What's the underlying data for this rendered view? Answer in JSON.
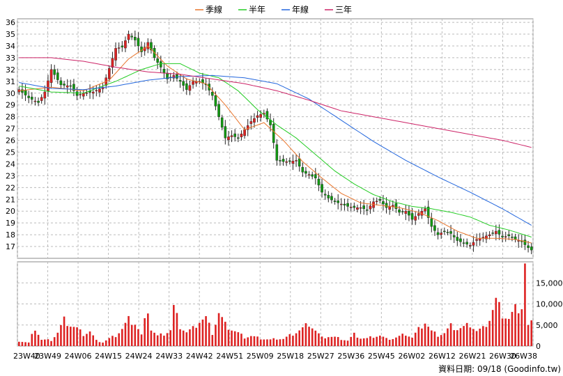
{
  "chart_data": {
    "type": "candlestick",
    "legend": [
      {
        "name": "季線",
        "color": "#e8742a"
      },
      {
        "name": "半年",
        "color": "#22cc22"
      },
      {
        "name": "年線",
        "color": "#2266dd"
      },
      {
        "name": "三年",
        "color": "#cc2266"
      }
    ],
    "legend_position": "top-center",
    "grid": true,
    "price_axis": {
      "range": [
        16,
        36.3
      ],
      "ticks": [
        17,
        18,
        19,
        20,
        21,
        22,
        23,
        24,
        25,
        26,
        27,
        28,
        29,
        30,
        31,
        32,
        33,
        34,
        35,
        36
      ]
    },
    "volume_axis": {
      "range": [
        0,
        20000
      ],
      "ticks": [
        0,
        5000,
        10000,
        15000
      ],
      "tick_labels": [
        "0",
        "5,000",
        "10,000",
        "15,000"
      ]
    },
    "x_categories": [
      "23W40",
      "23W49",
      "24W06",
      "24W15",
      "24W24",
      "24W33",
      "24W42",
      "24W51",
      "25W09",
      "25W18",
      "25W27",
      "25W36",
      "25W45",
      "26W02",
      "26W12",
      "26W21",
      "26W30",
      "26W38"
    ],
    "close_anchors": [
      [
        0,
        30.3
      ],
      [
        3,
        29.6
      ],
      [
        6,
        29.2
      ],
      [
        8,
        30.1
      ],
      [
        10,
        32.0
      ],
      [
        13,
        30.7
      ],
      [
        16,
        30.6
      ],
      [
        18,
        29.8
      ],
      [
        20,
        30.0
      ],
      [
        23,
        30.1
      ],
      [
        26,
        30.5
      ],
      [
        28,
        32.1
      ],
      [
        30,
        33.8
      ],
      [
        32,
        33.9
      ],
      [
        34,
        35.0
      ],
      [
        36,
        34.5
      ],
      [
        38,
        33.5
      ],
      [
        40,
        34.3
      ],
      [
        42,
        33.0
      ],
      [
        44,
        32.2
      ],
      [
        46,
        31.2
      ],
      [
        48,
        31.5
      ],
      [
        50,
        31.0
      ],
      [
        52,
        30.3
      ],
      [
        54,
        31.0
      ],
      [
        56,
        31.0
      ],
      [
        58,
        30.7
      ],
      [
        60,
        29.8
      ],
      [
        62,
        28.0
      ],
      [
        64,
        26.2
      ],
      [
        66,
        26.4
      ],
      [
        68,
        26.2
      ],
      [
        70,
        26.9
      ],
      [
        72,
        27.6
      ],
      [
        74,
        28.1
      ],
      [
        76,
        28.3
      ],
      [
        78,
        27.3
      ],
      [
        80,
        24.3
      ],
      [
        82,
        24.2
      ],
      [
        84,
        24.2
      ],
      [
        86,
        24.3
      ],
      [
        88,
        23.3
      ],
      [
        90,
        23.1
      ],
      [
        92,
        22.8
      ],
      [
        94,
        21.6
      ],
      [
        96,
        21.1
      ],
      [
        98,
        20.8
      ],
      [
        100,
        20.6
      ],
      [
        102,
        20.4
      ],
      [
        104,
        20.3
      ],
      [
        106,
        20.3
      ],
      [
        108,
        20.1
      ],
      [
        110,
        20.8
      ],
      [
        112,
        20.9
      ],
      [
        114,
        20.3
      ],
      [
        116,
        20.5
      ],
      [
        118,
        19.9
      ],
      [
        120,
        20.0
      ],
      [
        122,
        19.3
      ],
      [
        124,
        19.8
      ],
      [
        126,
        20.2
      ],
      [
        128,
        18.7
      ],
      [
        130,
        18.0
      ],
      [
        132,
        18.3
      ],
      [
        134,
        18.1
      ],
      [
        136,
        17.5
      ],
      [
        138,
        17.3
      ],
      [
        140,
        17.1
      ],
      [
        142,
        17.6
      ],
      [
        144,
        17.8
      ],
      [
        146,
        18.0
      ],
      [
        148,
        18.3
      ],
      [
        150,
        17.8
      ],
      [
        152,
        17.9
      ],
      [
        154,
        17.6
      ],
      [
        156,
        17.4
      ],
      [
        158,
        16.9
      ],
      [
        159,
        16.7
      ]
    ],
    "ma_quarter_anchors": [
      [
        0,
        30.2
      ],
      [
        10,
        30.5
      ],
      [
        20,
        30.2
      ],
      [
        28,
        31.1
      ],
      [
        34,
        32.9
      ],
      [
        40,
        34.0
      ],
      [
        46,
        32.3
      ],
      [
        52,
        31.2
      ],
      [
        58,
        30.8
      ],
      [
        64,
        29.0
      ],
      [
        70,
        26.9
      ],
      [
        76,
        27.5
      ],
      [
        82,
        26.0
      ],
      [
        88,
        24.2
      ],
      [
        94,
        22.8
      ],
      [
        100,
        21.5
      ],
      [
        106,
        20.7
      ],
      [
        112,
        20.5
      ],
      [
        118,
        20.3
      ],
      [
        124,
        19.9
      ],
      [
        130,
        19.2
      ],
      [
        136,
        18.3
      ],
      [
        142,
        17.7
      ],
      [
        148,
        17.7
      ],
      [
        154,
        17.6
      ],
      [
        159,
        17.3
      ]
    ],
    "ma_halfyear_anchors": [
      [
        0,
        30.6
      ],
      [
        10,
        30.1
      ],
      [
        20,
        30.0
      ],
      [
        30,
        31.0
      ],
      [
        38,
        32.0
      ],
      [
        44,
        32.5
      ],
      [
        50,
        32.5
      ],
      [
        56,
        31.7
      ],
      [
        62,
        31.3
      ],
      [
        68,
        30.2
      ],
      [
        74,
        28.6
      ],
      [
        80,
        27.3
      ],
      [
        86,
        26.2
      ],
      [
        92,
        24.8
      ],
      [
        98,
        23.4
      ],
      [
        104,
        22.3
      ],
      [
        110,
        21.4
      ],
      [
        116,
        20.8
      ],
      [
        122,
        20.4
      ],
      [
        128,
        20.2
      ],
      [
        134,
        19.9
      ],
      [
        140,
        19.5
      ],
      [
        146,
        18.8
      ],
      [
        152,
        18.4
      ],
      [
        159,
        17.8
      ]
    ],
    "ma_year_anchors": [
      [
        0,
        30.9
      ],
      [
        10,
        30.4
      ],
      [
        20,
        30.3
      ],
      [
        30,
        30.6
      ],
      [
        40,
        31.1
      ],
      [
        50,
        31.4
      ],
      [
        60,
        31.5
      ],
      [
        70,
        31.3
      ],
      [
        80,
        30.8
      ],
      [
        90,
        29.5
      ],
      [
        100,
        27.7
      ],
      [
        110,
        25.9
      ],
      [
        120,
        24.3
      ],
      [
        130,
        22.9
      ],
      [
        140,
        21.6
      ],
      [
        150,
        20.2
      ],
      [
        159,
        18.8
      ]
    ],
    "ma_3year_anchors": [
      [
        0,
        33.0
      ],
      [
        10,
        33.0
      ],
      [
        20,
        32.7
      ],
      [
        30,
        32.2
      ],
      [
        40,
        31.8
      ],
      [
        50,
        31.6
      ],
      [
        60,
        31.2
      ],
      [
        70,
        30.8
      ],
      [
        80,
        30.2
      ],
      [
        90,
        29.4
      ],
      [
        100,
        28.5
      ],
      [
        110,
        28.0
      ],
      [
        120,
        27.5
      ],
      [
        130,
        27.0
      ],
      [
        140,
        26.5
      ],
      [
        150,
        26.0
      ],
      [
        159,
        25.4
      ]
    ],
    "volume_anchors": [
      [
        0,
        1200
      ],
      [
        3,
        800
      ],
      [
        5,
        4300
      ],
      [
        7,
        1500
      ],
      [
        10,
        1400
      ],
      [
        12,
        3200
      ],
      [
        14,
        6200
      ],
      [
        16,
        5000
      ],
      [
        18,
        4200
      ],
      [
        20,
        2800
      ],
      [
        22,
        3500
      ],
      [
        24,
        1300
      ],
      [
        26,
        900
      ],
      [
        28,
        1800
      ],
      [
        30,
        2500
      ],
      [
        32,
        4100
      ],
      [
        34,
        6300
      ],
      [
        36,
        5500
      ],
      [
        38,
        2600
      ],
      [
        40,
        9100
      ],
      [
        41,
        4000
      ],
      [
        43,
        2400
      ],
      [
        45,
        2900
      ],
      [
        47,
        3800
      ],
      [
        48,
        9200
      ],
      [
        50,
        4700
      ],
      [
        52,
        3300
      ],
      [
        54,
        4200
      ],
      [
        56,
        6000
      ],
      [
        58,
        6700
      ],
      [
        60,
        3100
      ],
      [
        62,
        7900
      ],
      [
        64,
        5100
      ],
      [
        66,
        4000
      ],
      [
        68,
        3100
      ],
      [
        70,
        2100
      ],
      [
        72,
        2400
      ],
      [
        74,
        2000
      ],
      [
        76,
        1700
      ],
      [
        78,
        1500
      ],
      [
        80,
        1800
      ],
      [
        82,
        1700
      ],
      [
        84,
        2500
      ],
      [
        86,
        3300
      ],
      [
        88,
        4200
      ],
      [
        90,
        5400
      ],
      [
        92,
        3700
      ],
      [
        94,
        2000
      ],
      [
        96,
        2300
      ],
      [
        98,
        2100
      ],
      [
        100,
        1700
      ],
      [
        102,
        1300
      ],
      [
        104,
        2800
      ],
      [
        106,
        1900
      ],
      [
        108,
        1800
      ],
      [
        110,
        2300
      ],
      [
        112,
        2500
      ],
      [
        114,
        1700
      ],
      [
        116,
        1800
      ],
      [
        118,
        2300
      ],
      [
        120,
        2900
      ],
      [
        122,
        2000
      ],
      [
        124,
        4000
      ],
      [
        126,
        5800
      ],
      [
        128,
        3500
      ],
      [
        130,
        2600
      ],
      [
        132,
        3100
      ],
      [
        134,
        4800
      ],
      [
        136,
        4100
      ],
      [
        138,
        4500
      ],
      [
        140,
        5200
      ],
      [
        142,
        3600
      ],
      [
        144,
        4200
      ],
      [
        146,
        6500
      ],
      [
        148,
        10800
      ],
      [
        150,
        7700
      ],
      [
        152,
        6500
      ],
      [
        154,
        8800
      ],
      [
        156,
        9500
      ],
      [
        157,
        19800
      ],
      [
        158,
        4700
      ],
      [
        159,
        5400
      ]
    ],
    "bar_count": 160,
    "footer_text": "資料日期: 09/18  (Goodinfo.tw)"
  }
}
